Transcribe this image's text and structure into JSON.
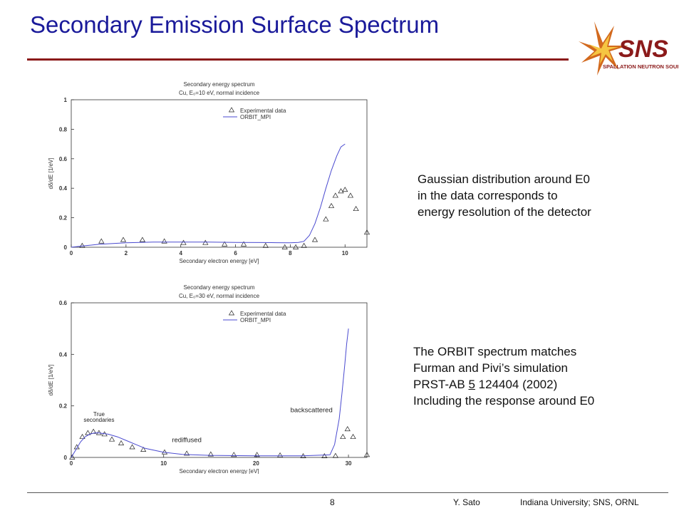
{
  "slide": {
    "title": "Secondary Emission Surface Spectrum",
    "notes_top": [
      "Gaussian distribution around E0",
      "in the data corresponds to",
      "energy resolution of the detector"
    ],
    "notes_bottom": {
      "line1": "The ORBIT spectrum matches",
      "line2": "Furman and Pivi’s simulation",
      "line3_prefix": "PRST-AB ",
      "line3_underlined": "5",
      "line3_suffix": " 124404 (2002)",
      "line4": "Including the response around E0"
    },
    "footer": {
      "page_number": "8",
      "author": "Y. Sato",
      "affiliation": "Indiana University;   SNS, ORNL"
    },
    "logo": {
      "text": "SNS",
      "subtext": "SPALLATION NEUTRON SOURCE",
      "icon": "sns-starburst-logo"
    },
    "colors": {
      "title": "#1a1a9a",
      "rule": "#8b1a1a",
      "curve": "#4a4ad0",
      "markers": "#222222"
    }
  },
  "chart_data": [
    {
      "type": "scatter",
      "title": "Secondary energy spectrum",
      "subtitle": "Cu, E₀=10 eV, normal incidence",
      "xlabel": "Secondary electron energy [eV]",
      "ylabel": "dδ/dE [1/eV]",
      "xlim": [
        0,
        10.8
      ],
      "ylim": [
        0,
        1
      ],
      "xticks": [
        "0",
        "2",
        "4",
        "6",
        "8",
        "10"
      ],
      "yticks": [
        "0",
        "0.2",
        "0.4",
        "0.6",
        "0.8",
        "1"
      ],
      "legend": {
        "placement": "top-right",
        "entries": [
          "Experimental data",
          "ORBIT_MPI"
        ]
      },
      "series": [
        {
          "name": "Experimental data",
          "marker": "triangle",
          "x": [
            0.4,
            1.1,
            1.9,
            2.6,
            3.4,
            4.1,
            4.9,
            5.6,
            6.3,
            7.1,
            7.8,
            8.2,
            8.5,
            8.9,
            9.3,
            9.5,
            9.65,
            9.85,
            10.0,
            10.2,
            10.4,
            10.8
          ],
          "y": [
            0.01,
            0.04,
            0.05,
            0.05,
            0.04,
            0.03,
            0.03,
            0.02,
            0.02,
            0.01,
            0.0,
            0.0,
            0.01,
            0.05,
            0.19,
            0.28,
            0.35,
            0.38,
            0.39,
            0.35,
            0.26,
            0.1
          ]
        },
        {
          "name": "ORBIT_MPI",
          "line": true,
          "x": [
            0,
            0.5,
            1,
            2,
            3,
            4,
            5,
            6,
            7,
            7.5,
            8,
            8.3,
            8.5,
            8.7,
            8.9,
            9.1,
            9.3,
            9.5,
            9.7,
            9.85,
            10.0
          ],
          "y": [
            0.0,
            0.01,
            0.02,
            0.03,
            0.035,
            0.035,
            0.035,
            0.033,
            0.032,
            0.031,
            0.03,
            0.033,
            0.04,
            0.08,
            0.16,
            0.27,
            0.4,
            0.52,
            0.62,
            0.68,
            0.7
          ]
        }
      ]
    },
    {
      "type": "scatter",
      "title": "Secondary energy spectrum",
      "subtitle": "Cu, E₀=30 eV, normal incidence",
      "xlabel": "Secondary electron energy [eV]",
      "ylabel": "dδ/dE [1/eV]",
      "xlim": [
        0,
        32
      ],
      "ylim": [
        0,
        0.6
      ],
      "xticks": [
        "0",
        "10",
        "20",
        "30"
      ],
      "yticks": [
        "0",
        "0.2",
        "0.4",
        "0.6"
      ],
      "legend": {
        "placement": "top-right",
        "entries": [
          "Experimental data",
          "ORBIT_MPI"
        ]
      },
      "annotations": [
        {
          "text": "True",
          "x": 3,
          "y": 0.161
        },
        {
          "text": "secondaries",
          "x": 3,
          "y": 0.138
        },
        {
          "text": "rediffused",
          "x": 12.5,
          "y": 0.06
        },
        {
          "text": "backscattered",
          "x": 26,
          "y": 0.175
        }
      ],
      "series": [
        {
          "name": "Experimental data",
          "marker": "triangle",
          "x": [
            0.1,
            0.6,
            1.2,
            1.8,
            2.4,
            3.0,
            3.6,
            4.4,
            5.4,
            6.6,
            7.8,
            10.1,
            12.5,
            15.1,
            17.6,
            20.1,
            22.6,
            25.1,
            27.4,
            28.6,
            29.4,
            29.9,
            30.5,
            32.0
          ],
          "y": [
            0.0,
            0.04,
            0.08,
            0.095,
            0.1,
            0.095,
            0.09,
            0.07,
            0.055,
            0.04,
            0.03,
            0.02,
            0.015,
            0.012,
            0.01,
            0.01,
            0.008,
            0.005,
            0.005,
            0.006,
            0.08,
            0.11,
            0.08,
            0.01
          ]
        },
        {
          "name": "ORBIT_MPI",
          "line": true,
          "x": [
            0,
            0.5,
            1,
            1.5,
            2,
            2.5,
            3,
            4,
            5,
            6,
            7,
            8,
            10,
            12,
            15,
            20,
            25,
            28,
            28.5,
            29,
            29.3,
            29.6,
            29.8,
            30
          ],
          "y": [
            0.0,
            0.03,
            0.06,
            0.08,
            0.09,
            0.095,
            0.095,
            0.09,
            0.08,
            0.065,
            0.05,
            0.035,
            0.02,
            0.012,
            0.008,
            0.006,
            0.006,
            0.01,
            0.05,
            0.15,
            0.25,
            0.36,
            0.44,
            0.5
          ]
        }
      ]
    }
  ]
}
